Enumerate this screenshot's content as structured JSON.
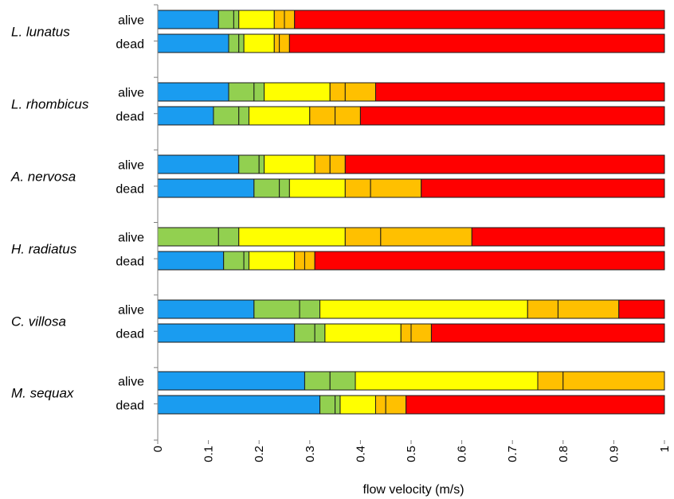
{
  "chart_data": {
    "type": "bar",
    "orientation": "horizontal",
    "stacked": "cumulative",
    "xlabel": "flow velocity (m/s)",
    "xlim": [
      0,
      1
    ],
    "x_ticks": [
      "0",
      "0.1",
      "0.2",
      "0.3",
      "0.4",
      "0.5",
      "0.6",
      "0.7",
      "0.8",
      "0.9",
      "1"
    ],
    "grid": false,
    "legend": "none",
    "segment_colors": [
      "#1a9cf0",
      "#92d050",
      "#92d050",
      "#ffff00",
      "#ffc000",
      "#ffc000",
      "#ff0000"
    ],
    "groups": [
      {
        "species": "L. lunatus",
        "rows": [
          {
            "label": "alive",
            "boundaries": [
              0.12,
              0.15,
              0.16,
              0.23,
              0.25,
              0.27,
              1.0
            ]
          },
          {
            "label": "dead",
            "boundaries": [
              0.14,
              0.16,
              0.17,
              0.23,
              0.24,
              0.26,
              1.0
            ]
          }
        ]
      },
      {
        "species": "L. rhombicus",
        "rows": [
          {
            "label": "alive",
            "boundaries": [
              0.14,
              0.19,
              0.21,
              0.34,
              0.37,
              0.43,
              1.0
            ]
          },
          {
            "label": "dead",
            "boundaries": [
              0.11,
              0.16,
              0.18,
              0.3,
              0.35,
              0.4,
              1.0
            ]
          }
        ]
      },
      {
        "species": "A. nervosa",
        "rows": [
          {
            "label": "alive",
            "boundaries": [
              0.16,
              0.2,
              0.21,
              0.31,
              0.34,
              0.37,
              1.0
            ]
          },
          {
            "label": "dead",
            "boundaries": [
              0.19,
              0.24,
              0.26,
              0.37,
              0.42,
              0.52,
              1.0
            ]
          }
        ]
      },
      {
        "species": "H. radiatus",
        "rows": [
          {
            "label": "alive",
            "boundaries": [
              0.0,
              0.12,
              0.16,
              0.37,
              0.44,
              0.62,
              1.0
            ]
          },
          {
            "label": "dead",
            "boundaries": [
              0.13,
              0.17,
              0.18,
              0.27,
              0.29,
              0.31,
              1.0
            ]
          }
        ]
      },
      {
        "species": "C. villosa",
        "rows": [
          {
            "label": "alive",
            "boundaries": [
              0.19,
              0.28,
              0.32,
              0.73,
              0.79,
              0.91,
              1.0
            ]
          },
          {
            "label": "dead",
            "boundaries": [
              0.27,
              0.31,
              0.33,
              0.48,
              0.5,
              0.54,
              1.0
            ]
          }
        ]
      },
      {
        "species": "M. sequax",
        "rows": [
          {
            "label": "alive",
            "boundaries": [
              0.29,
              0.34,
              0.39,
              0.75,
              0.8,
              1.0,
              1.0
            ]
          },
          {
            "label": "dead",
            "boundaries": [
              0.32,
              0.35,
              0.36,
              0.43,
              0.45,
              0.49,
              1.0
            ]
          }
        ]
      }
    ]
  }
}
